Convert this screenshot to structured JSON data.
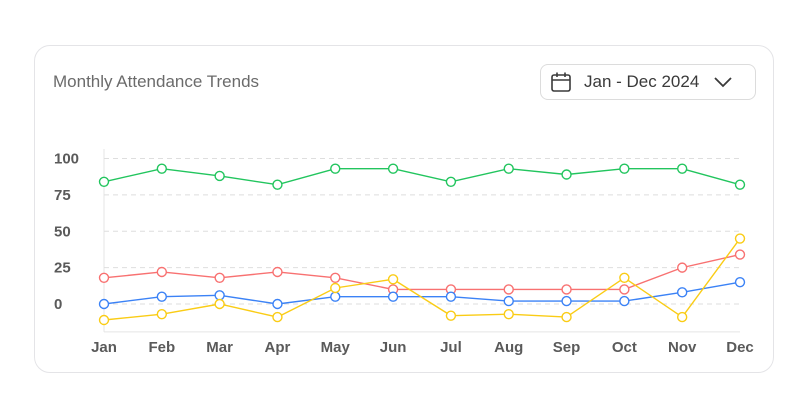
{
  "card": {
    "title": "Monthly Attendance Trends",
    "date_range": "Jan - Dec 2024"
  },
  "icons": {
    "calendar": "calendar-icon",
    "chevron": "chevron-down-icon"
  },
  "chart_data": {
    "type": "line",
    "title": "Monthly Attendance Trends",
    "categories": [
      "Jan",
      "Feb",
      "Mar",
      "Apr",
      "May",
      "Jun",
      "Jul",
      "Aug",
      "Sep",
      "Oct",
      "Nov",
      "Dec"
    ],
    "yticks": [
      "100",
      "75",
      "50",
      "25",
      "0"
    ],
    "ylim": [
      -15,
      110
    ],
    "grid": true,
    "series": [
      {
        "color": "#22c55e",
        "values": [
          84,
          93,
          88,
          82,
          93,
          93,
          84,
          93,
          89,
          93,
          93,
          82
        ]
      },
      {
        "color": "#f87171",
        "values": [
          18,
          22,
          18,
          22,
          18,
          10,
          10,
          10,
          10,
          10,
          25,
          34
        ]
      },
      {
        "color": "#3b82f6",
        "values": [
          0,
          5,
          6,
          0,
          5,
          5,
          5,
          2,
          2,
          2,
          8,
          15
        ]
      },
      {
        "color": "#facc15",
        "values": [
          -11,
          -7,
          0,
          -9,
          11,
          17,
          -8,
          -7,
          -9,
          18,
          -9,
          45
        ]
      }
    ]
  }
}
